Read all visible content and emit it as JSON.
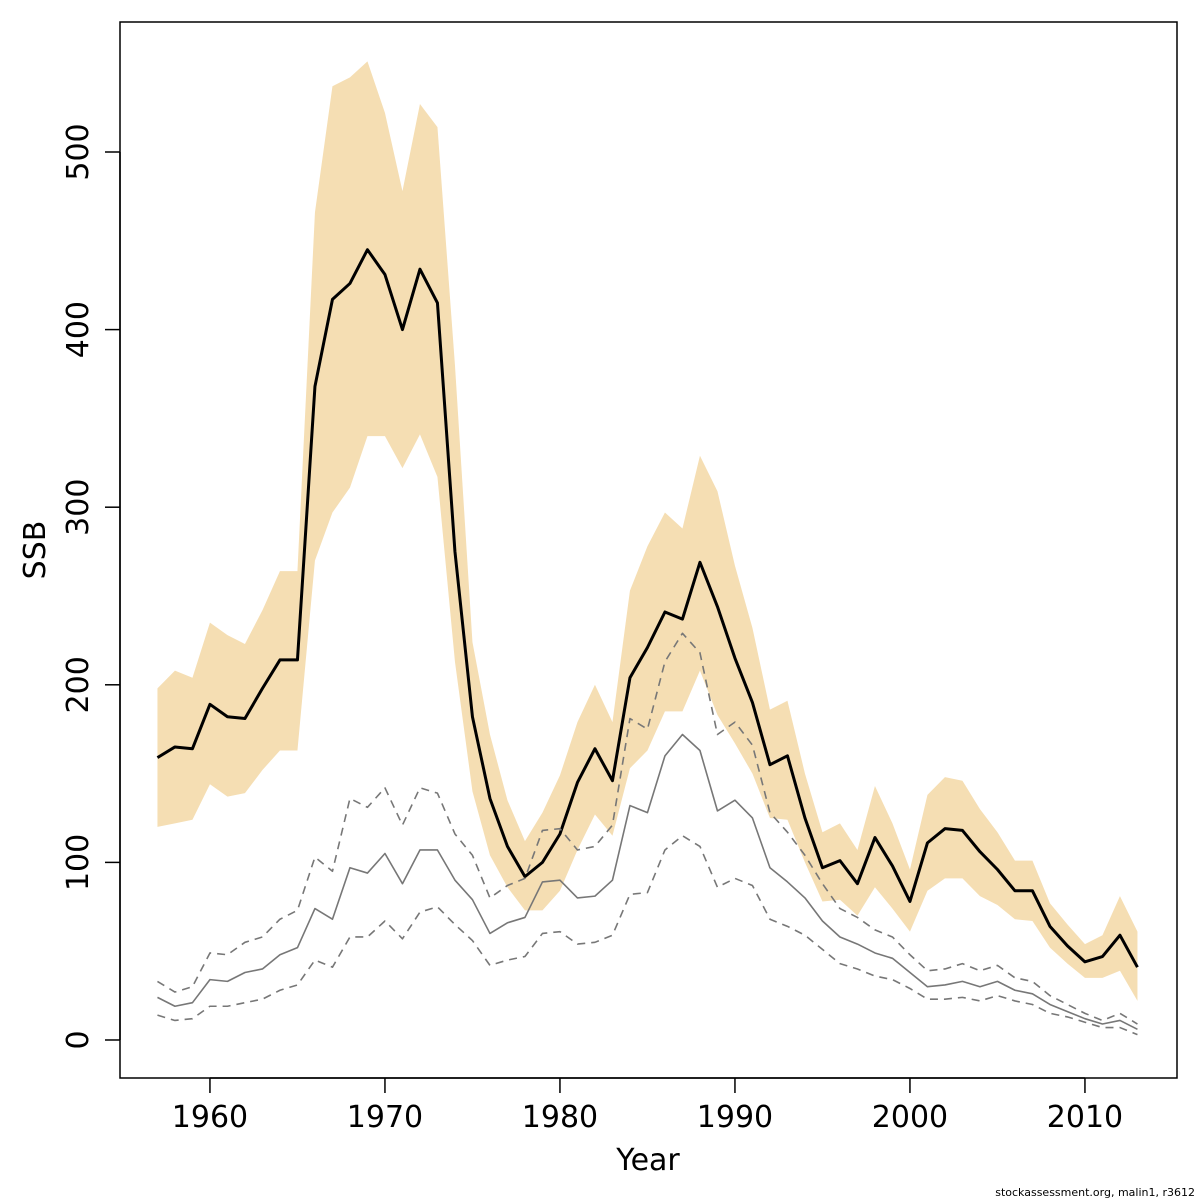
{
  "chart_data": {
    "type": "line",
    "x_label": "Year",
    "y_label": "SSB",
    "annotation": "stockassessment.org, malin1, r3612",
    "x": [
      1957,
      1958,
      1959,
      1960,
      1961,
      1962,
      1963,
      1964,
      1965,
      1966,
      1967,
      1968,
      1969,
      1970,
      1971,
      1972,
      1973,
      1974,
      1975,
      1976,
      1977,
      1978,
      1979,
      1980,
      1981,
      1982,
      1983,
      1984,
      1985,
      1986,
      1987,
      1988,
      1989,
      1990,
      1991,
      1992,
      1993,
      1994,
      1995,
      1996,
      1997,
      1998,
      1999,
      2000,
      2001,
      2002,
      2003,
      2004,
      2005,
      2006,
      2007,
      2008,
      2009,
      2010,
      2011,
      2012,
      2013
    ],
    "band": {
      "color": "#f5deb3",
      "upper": [
        198,
        208,
        204,
        235,
        228,
        223,
        242,
        264,
        264,
        466,
        537,
        542,
        551,
        522,
        478,
        527,
        514,
        380,
        224,
        172,
        135,
        112,
        128,
        149,
        179,
        200,
        179,
        253,
        278,
        297,
        288,
        329,
        309,
        267,
        232,
        186,
        191,
        150,
        117,
        122,
        107,
        143,
        122,
        96,
        138,
        148,
        146,
        130,
        117,
        101,
        101,
        77,
        65,
        54,
        59,
        81,
        61
      ],
      "lower": [
        120,
        122,
        124,
        144,
        137,
        139,
        152,
        163,
        163,
        270,
        297,
        311,
        340,
        340,
        322,
        341,
        317,
        213,
        140,
        104,
        86,
        73,
        73,
        84,
        107,
        127,
        115,
        153,
        163,
        185,
        185,
        208,
        183,
        167,
        150,
        125,
        124,
        100,
        78,
        79,
        70,
        86,
        74,
        61,
        84,
        91,
        91,
        81,
        76,
        68,
        67,
        52,
        43,
        35,
        35,
        39,
        22
      ]
    },
    "series": [
      {
        "color": "#000000",
        "dashed": false,
        "width": 3,
        "values": [
          159,
          165,
          164,
          189,
          182,
          181,
          198,
          214,
          214,
          368,
          417,
          426,
          445,
          431,
          400,
          434,
          415,
          275,
          182,
          136,
          109,
          92,
          100,
          116,
          145,
          164,
          146,
          204,
          221,
          241,
          237,
          269,
          244,
          215,
          190,
          155,
          160,
          125,
          97,
          101,
          88,
          114,
          98,
          78,
          111,
          119,
          118,
          106,
          96,
          84,
          84,
          64,
          53,
          44,
          47,
          59,
          41
        ]
      },
      {
        "color": "#777777",
        "dashed": false,
        "width": 1.6,
        "values": [
          24,
          19,
          21,
          34,
          33,
          38,
          40,
          48,
          52,
          74,
          68,
          97,
          94,
          105,
          88,
          107,
          107,
          90,
          79,
          60,
          66,
          69,
          89,
          90,
          80,
          81,
          90,
          132,
          128,
          160,
          172,
          163,
          129,
          135,
          125,
          97,
          89,
          80,
          67,
          58,
          54,
          49,
          46,
          38,
          30,
          31,
          33,
          30,
          33,
          28,
          26,
          20,
          16,
          12,
          9,
          11,
          6
        ]
      },
      {
        "color": "#777777",
        "dashed": true,
        "width": 1.6,
        "values": [
          33,
          27,
          30,
          49,
          48,
          55,
          58,
          68,
          73,
          103,
          95,
          136,
          131,
          142,
          121,
          142,
          139,
          116,
          104,
          80,
          87,
          91,
          118,
          119,
          107,
          109,
          121,
          181,
          175,
          213,
          229,
          218,
          172,
          179,
          166,
          128,
          117,
          104,
          88,
          74,
          69,
          62,
          58,
          48,
          39,
          40,
          43,
          39,
          42,
          35,
          33,
          25,
          20,
          15,
          11,
          15,
          9
        ]
      },
      {
        "color": "#777777",
        "dashed": true,
        "width": 1.6,
        "values": [
          14,
          11,
          12,
          19,
          19,
          21,
          23,
          28,
          31,
          45,
          41,
          58,
          58,
          67,
          57,
          72,
          75,
          65,
          56,
          42,
          45,
          47,
          60,
          61,
          54,
          55,
          59,
          82,
          83,
          107,
          115,
          109,
          86,
          91,
          87,
          68,
          64,
          59,
          51,
          43,
          40,
          36,
          34,
          29,
          23,
          23,
          24,
          22,
          25,
          22,
          20,
          15,
          13,
          10,
          7,
          7,
          3
        ]
      }
    ],
    "xlim": [
      1954.86,
      2015.26
    ],
    "ylim": [
      -21.4,
      573.2
    ],
    "xticks": [
      1960,
      1970,
      1980,
      1990,
      2000,
      2010
    ],
    "yticks": [
      0,
      100,
      200,
      300,
      400,
      500
    ]
  }
}
